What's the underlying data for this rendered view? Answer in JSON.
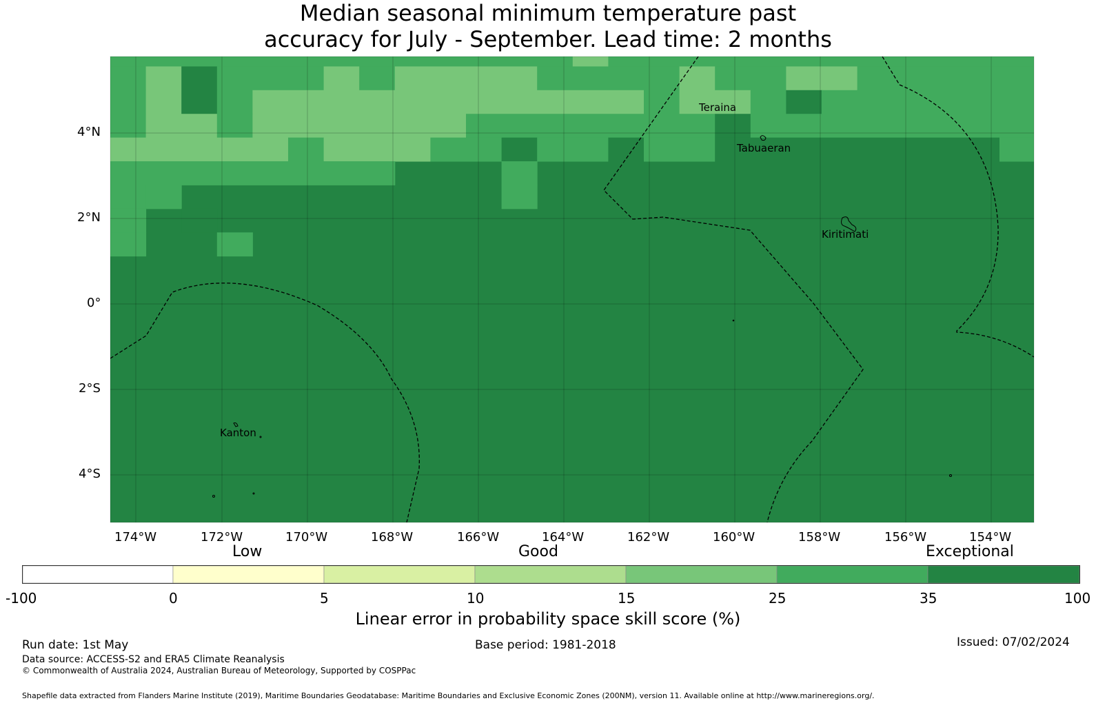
{
  "title": {
    "line1": "Median seasonal minimum temperature past",
    "line2": "accuracy for July - September. Lead time: 2 months"
  },
  "colors": {
    "exceptional": "#238443",
    "c25_35": "#41ab5d",
    "c15_25": "#78c679",
    "c10_15": "#addd8e",
    "c5_10": "#d9f0a3",
    "c0_5": "#ffffcc",
    "neg": "#ffffff"
  },
  "map": {
    "lon_ticks": [
      "174°W",
      "172°W",
      "170°W",
      "168°W",
      "166°W",
      "164°W",
      "162°W",
      "160°W",
      "158°W",
      "156°W",
      "154°W"
    ],
    "lat_ticks": [
      "4°N",
      "2°N",
      "0°",
      "2°S",
      "4°S"
    ],
    "places": [
      {
        "name": "Teraina"
      },
      {
        "name": "Tabuaeran"
      },
      {
        "name": "Kiritimati"
      },
      {
        "name": "Kanton"
      }
    ]
  },
  "colorbar": {
    "category_labels": [
      "Low",
      "Good",
      "Exceptional"
    ],
    "ticks": [
      "-100",
      "0",
      "5",
      "10",
      "15",
      "25",
      "35",
      "100"
    ],
    "title": "Linear error in probability space skill score (%)"
  },
  "footer": {
    "run_date": "Run date: 1st May",
    "base_period": "Base period: 1981-2018",
    "issued": "Issued: 07/02/2024",
    "data_source": "Data source: ACCESS-S2 and ERA5 Climate Reanalysis",
    "copyright": "© Commonwealth of Australia 2024, Australian Bureau of Meteorology, Supported by COSPPac",
    "shapefile": "Shapefile data extracted from Flanders Marine Institute (2019), Maritime Boundaries Geodatabase: Maritime Boundaries and Exclusive Economic Zones (200NM), version 11. Available online at http://www.marineregions.org/."
  }
}
